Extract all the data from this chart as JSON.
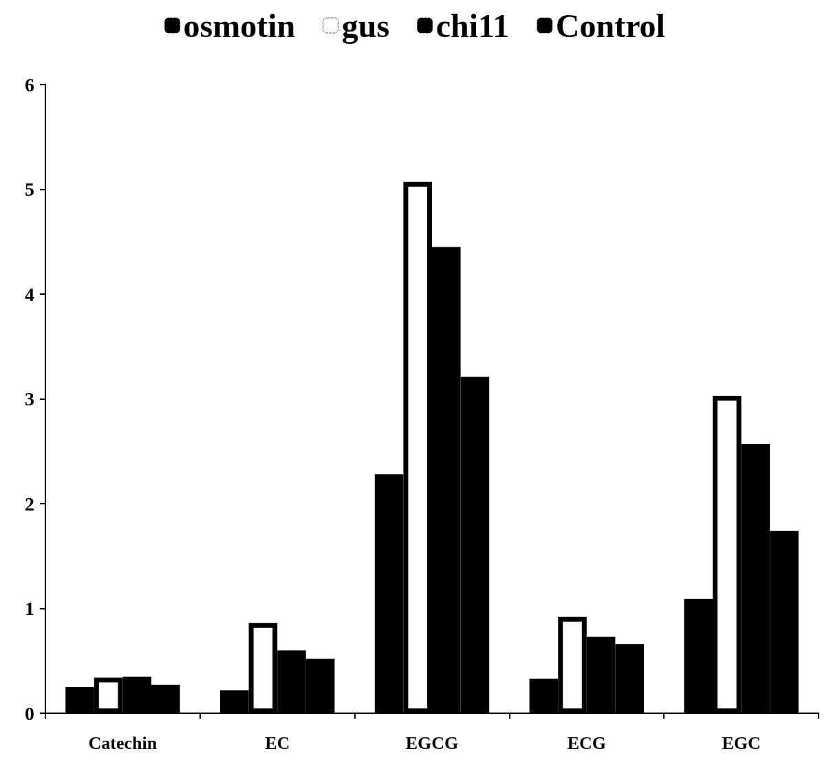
{
  "chart_data": {
    "type": "bar",
    "categories": [
      "Catechin",
      "EC",
      "EGCG",
      "ECG",
      "EGC"
    ],
    "series": [
      {
        "name": "osmotin",
        "color": "#000000",
        "values": [
          0.25,
          0.22,
          2.28,
          0.33,
          1.09
        ]
      },
      {
        "name": "gus",
        "color": "#ffffff",
        "values": [
          0.34,
          0.86,
          5.07,
          0.92,
          3.03
        ]
      },
      {
        "name": "chi11",
        "color": "#000000",
        "values": [
          0.35,
          0.6,
          4.45,
          0.73,
          2.57
        ]
      },
      {
        "name": "Control",
        "color": "#000000",
        "values": [
          0.27,
          0.52,
          3.21,
          0.66,
          1.74
        ]
      }
    ],
    "ylim": [
      0,
      6
    ],
    "yticks": [
      0,
      1,
      2,
      3,
      4,
      5,
      6
    ],
    "grid": false,
    "legend": "top"
  }
}
